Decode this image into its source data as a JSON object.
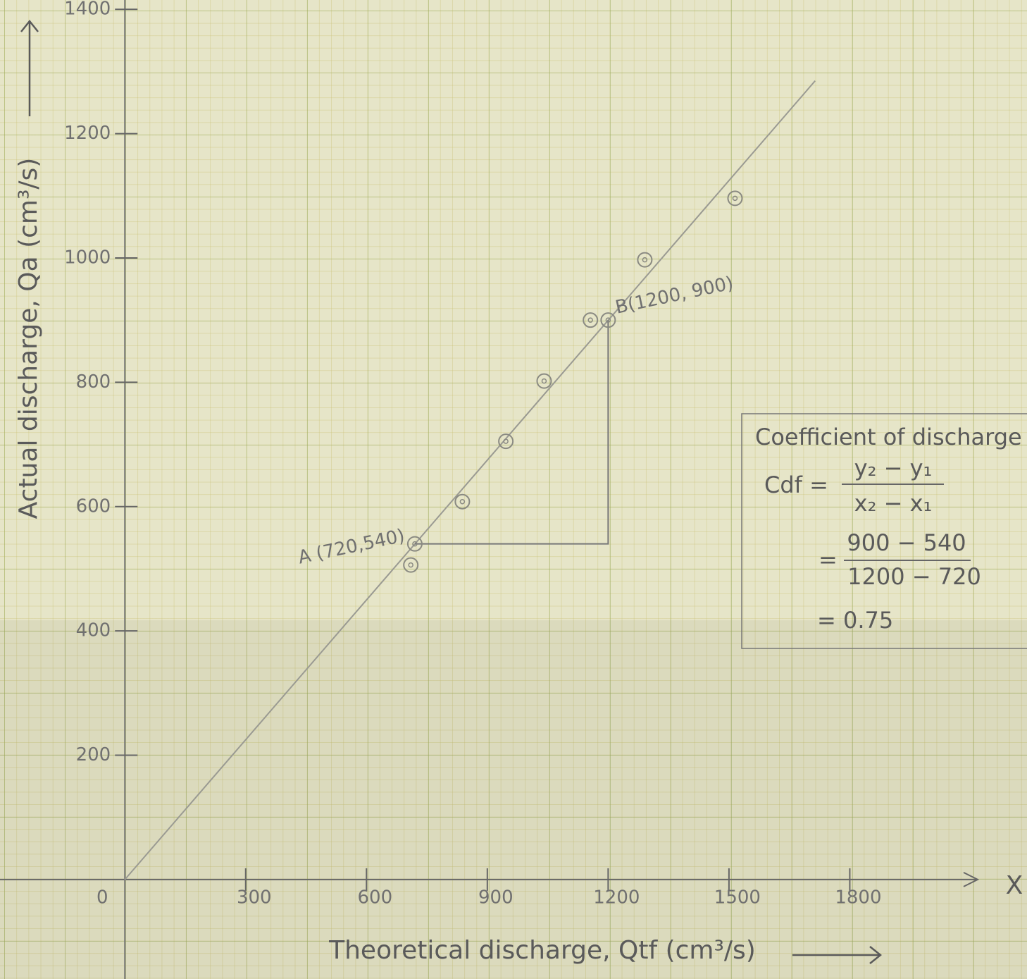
{
  "chart_data": {
    "type": "scatter",
    "x_label": "Theoretical discharge, Qtf (cm³/s)",
    "y_label": "Actual discharge, Qa (cm³/s)",
    "x_axis_end_label": "X",
    "origin_label": "0",
    "xlim": [
      -310,
      2240
    ],
    "ylim": [
      -160,
      1415
    ],
    "xticks": [
      300,
      600,
      900,
      1200,
      1500,
      1800
    ],
    "yticks": [
      200,
      400,
      600,
      800,
      1000,
      1200,
      1400
    ],
    "color": "#8a8a82",
    "points": {
      "x": [
        710,
        720,
        838,
        946,
        1041,
        1156,
        1200,
        1291,
        1515
      ],
      "y": [
        506,
        540,
        608,
        705,
        802,
        900,
        900,
        997,
        1096
      ]
    },
    "fit_line": {
      "x": [
        0,
        1714
      ],
      "y": [
        0,
        1285
      ]
    },
    "slope_lines": {
      "x": [
        720,
        1200,
        1200
      ],
      "y": [
        540,
        540,
        900
      ]
    },
    "annotations": [
      {
        "text": "A (720,540)",
        "x": 720,
        "y": 540
      },
      {
        "text": "B(1200, 900)",
        "x": 1200,
        "y": 900
      }
    ],
    "result_box": {
      "heading": "Coefficient of discharge",
      "symbol": "Cdf =",
      "formula_numerator": "y₂ − y₁",
      "formula_denominator": "x₂ − x₁",
      "equals": "=",
      "numerator": "900 − 540",
      "denominator": "1200 − 720",
      "result": "= 0.75"
    }
  }
}
